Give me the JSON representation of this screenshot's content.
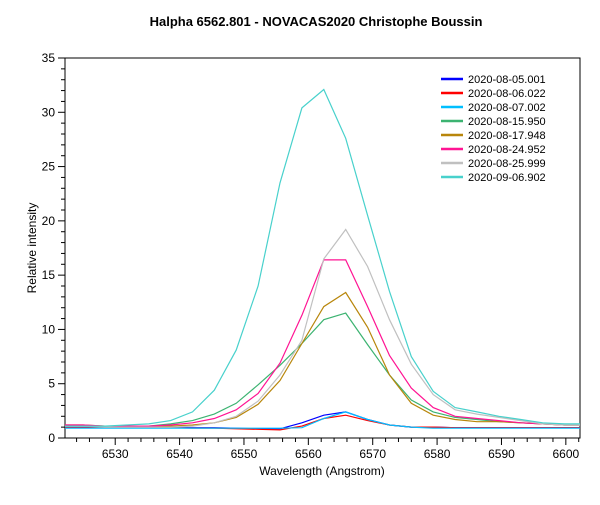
{
  "chart_data": {
    "type": "line",
    "title": "Halpha 6562.801 - NOVACAS2020   Christophe Boussin",
    "xlabel": "Wavelength (Angstrom)",
    "ylabel": "Relative intensity",
    "xlim": [
      6522.2,
      6602.2
    ],
    "ylim": [
      0,
      35
    ],
    "xticks": [
      6530,
      6540,
      6550,
      6560,
      6570,
      6580,
      6590,
      6600
    ],
    "yticks": [
      0,
      5,
      10,
      15,
      20,
      25,
      30,
      35
    ],
    "grid": false,
    "legend_position": "top-right",
    "x": [
      6521.6,
      6525.0,
      6528.4,
      6531.8,
      6535.2,
      6538.6,
      6542.0,
      6545.4,
      6548.8,
      6552.2,
      6555.6,
      6559.0,
      6562.4,
      6565.8,
      6569.2,
      6572.6,
      6576.0,
      6579.4,
      6582.8,
      6586.2,
      6589.6,
      6593.0,
      6596.4,
      6599.8,
      6603.2
    ],
    "series": [
      {
        "name": "2020-08-05.001",
        "color": "#0000ff",
        "values": [
          0.95,
          0.95,
          0.95,
          0.95,
          0.95,
          0.95,
          0.95,
          0.95,
          0.9,
          0.85,
          0.85,
          1.4,
          2.1,
          2.4,
          1.7,
          1.2,
          1.0,
          1.0,
          0.95,
          0.95,
          0.95,
          0.95,
          0.95,
          0.95,
          0.95
        ]
      },
      {
        "name": "2020-08-06.022",
        "color": "#ff0000",
        "values": [
          0.95,
          0.95,
          0.95,
          0.95,
          0.95,
          0.95,
          0.9,
          0.9,
          0.85,
          0.8,
          0.75,
          1.1,
          1.8,
          2.1,
          1.6,
          1.2,
          1.0,
          1.0,
          0.95,
          0.95,
          0.95,
          0.95,
          0.95,
          0.95,
          0.95
        ]
      },
      {
        "name": "2020-08-07.002",
        "color": "#00bfff",
        "values": [
          0.9,
          0.9,
          0.9,
          0.9,
          0.9,
          0.9,
          0.9,
          0.9,
          0.9,
          0.9,
          0.9,
          0.95,
          1.8,
          2.4,
          1.7,
          1.2,
          1.0,
          0.9,
          0.9,
          0.9,
          0.9,
          0.9,
          0.9,
          0.9,
          0.9
        ]
      },
      {
        "name": "2020-08-15.950",
        "color": "#3cb371",
        "values": [
          1.1,
          1.1,
          1.1,
          1.1,
          1.1,
          1.3,
          1.6,
          2.2,
          3.2,
          4.9,
          6.7,
          8.7,
          10.9,
          11.5,
          8.6,
          5.8,
          3.5,
          2.4,
          1.9,
          1.7,
          1.5,
          1.4,
          1.3,
          1.2,
          1.2
        ]
      },
      {
        "name": "2020-08-17.948",
        "color": "#b8860b",
        "values": [
          1.2,
          1.2,
          1.1,
          1.1,
          1.1,
          1.1,
          1.2,
          1.4,
          1.9,
          3.1,
          5.3,
          8.7,
          12.1,
          13.4,
          10.2,
          5.8,
          3.2,
          2.1,
          1.7,
          1.5,
          1.5,
          1.4,
          1.3,
          1.2,
          1.2
        ]
      },
      {
        "name": "2020-08-24.952",
        "color": "#ff1493",
        "values": [
          1.2,
          1.2,
          1.1,
          1.1,
          1.1,
          1.2,
          1.4,
          1.8,
          2.6,
          4.1,
          6.9,
          11.3,
          16.4,
          16.4,
          12.1,
          7.6,
          4.6,
          2.8,
          2.0,
          1.8,
          1.6,
          1.4,
          1.3,
          1.2,
          1.2
        ]
      },
      {
        "name": "2020-08-25.999",
        "color": "#c0c0c0",
        "values": [
          1.1,
          1.1,
          1.0,
          1.0,
          1.0,
          1.0,
          1.1,
          1.4,
          2.0,
          3.4,
          5.8,
          9.0,
          16.5,
          19.2,
          15.8,
          10.9,
          6.8,
          4.0,
          2.6,
          2.2,
          1.9,
          1.6,
          1.3,
          1.2,
          1.2
        ]
      },
      {
        "name": "2020-09-06.902",
        "color": "#48d1cc",
        "values": [
          1.1,
          1.1,
          1.1,
          1.2,
          1.3,
          1.6,
          2.4,
          4.4,
          8.1,
          14.0,
          23.5,
          30.4,
          32.1,
          27.6,
          20.5,
          13.5,
          7.5,
          4.3,
          2.8,
          2.4,
          2.0,
          1.7,
          1.4,
          1.3,
          1.3
        ]
      }
    ]
  }
}
